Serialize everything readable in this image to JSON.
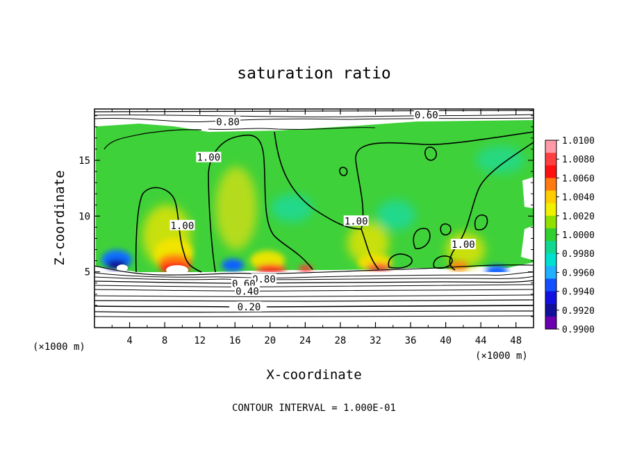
{
  "chart_data": {
    "type": "heatmap",
    "title": "saturation ratio",
    "xlabel": "X-coordinate",
    "ylabel": "Z-coordinate",
    "x_units_left": "(×1000 m)",
    "x_units_right": "(×1000 m)",
    "footer": "CONTOUR INTERVAL = 1.000E-01",
    "xlim": [
      0,
      50
    ],
    "ylim": [
      0,
      19.6
    ],
    "x_ticks": [
      4,
      8,
      12,
      16,
      20,
      24,
      28,
      32,
      36,
      40,
      44,
      48
    ],
    "x_tick_labels": [
      "4",
      "8",
      "12",
      "16",
      "20",
      "24",
      "28",
      "32",
      "36",
      "40",
      "44",
      "48"
    ],
    "y_ticks": [
      5,
      10,
      15
    ],
    "y_tick_labels": [
      "5",
      "10",
      "15"
    ],
    "colorbar": {
      "labels": [
        "1.0100",
        "1.0080",
        "1.0060",
        "1.0040",
        "1.0020",
        "1.0000",
        "0.9980",
        "0.9960",
        "0.9940",
        "0.9920",
        "0.9900"
      ],
      "colors": [
        "#ff9aa6",
        "#ff4040",
        "#ff1010",
        "#ff7a10",
        "#ffcc00",
        "#f0f000",
        "#90e000",
        "#30d030",
        "#10d890",
        "#00e0d0",
        "#20b0ff",
        "#1050ff",
        "#1010e0",
        "#10109a",
        "#6a00b0"
      ]
    },
    "contour_labels": [
      {
        "text": "0.60",
        "x": 37.8,
        "z": 19.0
      },
      {
        "text": "0.80",
        "x": 15.2,
        "z": 18.4
      },
      {
        "text": "1.00",
        "x": 13.0,
        "z": 15.2
      },
      {
        "text": "1.00",
        "x": 10.0,
        "z": 9.1
      },
      {
        "text": "1.00",
        "x": 29.8,
        "z": 9.5
      },
      {
        "text": "1.00",
        "x": 42.0,
        "z": 7.4
      },
      {
        "text": "0.80",
        "x": 19.3,
        "z": 4.3
      },
      {
        "text": "0.60",
        "x": 17.0,
        "z": 3.9
      },
      {
        "text": "0.40",
        "x": 17.4,
        "z": 3.2
      },
      {
        "text": "0.20",
        "x": 17.6,
        "z": 1.8
      }
    ]
  }
}
